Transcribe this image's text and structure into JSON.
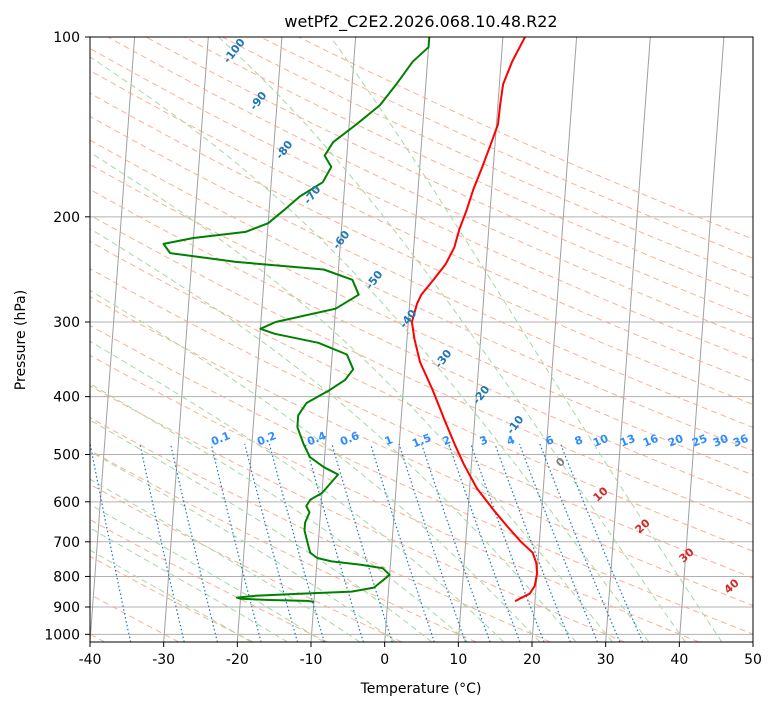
{
  "chart_data": {
    "type": "line",
    "title": "wetPf2_C2E2.2026.068.10.48.R22",
    "xlabel": "Temperature (°C)",
    "ylabel": "Pressure (hPa)",
    "xlim": [
      -40,
      50
    ],
    "ylim_hpa": [
      1030,
      100
    ],
    "y_scale": "log",
    "x_ticks": [
      -40,
      -30,
      -20,
      -10,
      0,
      10,
      20,
      30,
      40,
      50
    ],
    "y_ticks": [
      100,
      200,
      300,
      400,
      500,
      600,
      700,
      800,
      900,
      1000
    ],
    "grid": true,
    "series": [
      {
        "role": "temperature",
        "color": "#ff0000",
        "points": [
          [
            17.3,
            880
          ],
          [
            18,
            870
          ],
          [
            19.2,
            855
          ],
          [
            19.8,
            830
          ],
          [
            20.0,
            790
          ],
          [
            19.8,
            760
          ],
          [
            19.2,
            730
          ],
          [
            17.5,
            700
          ],
          [
            15.5,
            660
          ],
          [
            13.5,
            620
          ],
          [
            11.0,
            570
          ],
          [
            9.0,
            520
          ],
          [
            7.5,
            480
          ],
          [
            6.0,
            440
          ],
          [
            4.0,
            390
          ],
          [
            2.0,
            350
          ],
          [
            1.0,
            320
          ],
          [
            0.5,
            300
          ],
          [
            1.0,
            280
          ],
          [
            1.5,
            270
          ],
          [
            3.0,
            255
          ],
          [
            4.5,
            240
          ],
          [
            5.5,
            225
          ],
          [
            6.0,
            210
          ],
          [
            6.8,
            195
          ],
          [
            7.5,
            180
          ],
          [
            8.5,
            165
          ],
          [
            9.5,
            150
          ],
          [
            10.2,
            140
          ],
          [
            10.3,
            130
          ],
          [
            10.5,
            120
          ],
          [
            11.5,
            110
          ],
          [
            13.0,
            100
          ]
        ]
      },
      {
        "role": "dewpoint",
        "color": "#008000",
        "points": [
          [
            -10,
            882
          ],
          [
            -11,
            879
          ],
          [
            -16,
            876
          ],
          [
            -20,
            872
          ],
          [
            -20.5,
            868
          ],
          [
            -18,
            862
          ],
          [
            -12,
            855
          ],
          [
            -5,
            848
          ],
          [
            -2,
            835
          ],
          [
            -1,
            815
          ],
          [
            0,
            795
          ],
          [
            -1,
            775
          ],
          [
            -4,
            765
          ],
          [
            -8,
            755
          ],
          [
            -10,
            745
          ],
          [
            -11,
            730
          ],
          [
            -11.5,
            700
          ],
          [
            -12,
            670
          ],
          [
            -12,
            650
          ],
          [
            -11.5,
            625
          ],
          [
            -12,
            610
          ],
          [
            -11.5,
            595
          ],
          [
            -10,
            580
          ],
          [
            -9,
            560
          ],
          [
            -8,
            540
          ],
          [
            -10,
            525
          ],
          [
            -12,
            505
          ],
          [
            -13,
            480
          ],
          [
            -14,
            450
          ],
          [
            -14,
            430
          ],
          [
            -13,
            410
          ],
          [
            -10,
            390
          ],
          [
            -8,
            375
          ],
          [
            -7,
            360
          ],
          [
            -8,
            340
          ],
          [
            -12,
            325
          ],
          [
            -18,
            314
          ],
          [
            -20,
            308
          ],
          [
            -18,
            300
          ],
          [
            -10,
            285
          ],
          [
            -7,
            270
          ],
          [
            -8,
            255
          ],
          [
            -12,
            245
          ],
          [
            -24,
            238
          ],
          [
            -33,
            230
          ],
          [
            -34,
            222
          ],
          [
            -30,
            217
          ],
          [
            -23,
            212
          ],
          [
            -20,
            205
          ],
          [
            -18,
            195
          ],
          [
            -16,
            185
          ],
          [
            -13,
            175
          ],
          [
            -12,
            165
          ],
          [
            -13,
            158
          ],
          [
            -12,
            150
          ],
          [
            -9,
            140
          ],
          [
            -6,
            130
          ],
          [
            -4,
            120
          ],
          [
            -2,
            110
          ],
          [
            0,
            104
          ],
          [
            0,
            100
          ]
        ]
      }
    ],
    "skew_dry_adiabat_labels": [
      "-100",
      "-90",
      "-80",
      "-70",
      "-60",
      "-50",
      "-40",
      "-30",
      "-20",
      "-10"
    ],
    "mixing_ratio_labels": [
      "0.1",
      "0.2",
      "0.4",
      "0.6",
      "1",
      "1.5",
      "2",
      "3",
      "4",
      "6",
      "8",
      "10",
      "13",
      "16",
      "20",
      "25",
      "30",
      "36"
    ],
    "moist_adiabat_labels": [
      "0",
      "10",
      "20",
      "30",
      "40"
    ]
  },
  "colors": {
    "temperature": "#ff0000",
    "dewpoint": "#008000",
    "dry_adiabat": "#f4a582",
    "moist_adiabat": "#a6d8a6",
    "mixing_ratio": "#1f77b4",
    "isotherm_skew": "#a0a0a0",
    "grid": "#b0b0b0"
  }
}
